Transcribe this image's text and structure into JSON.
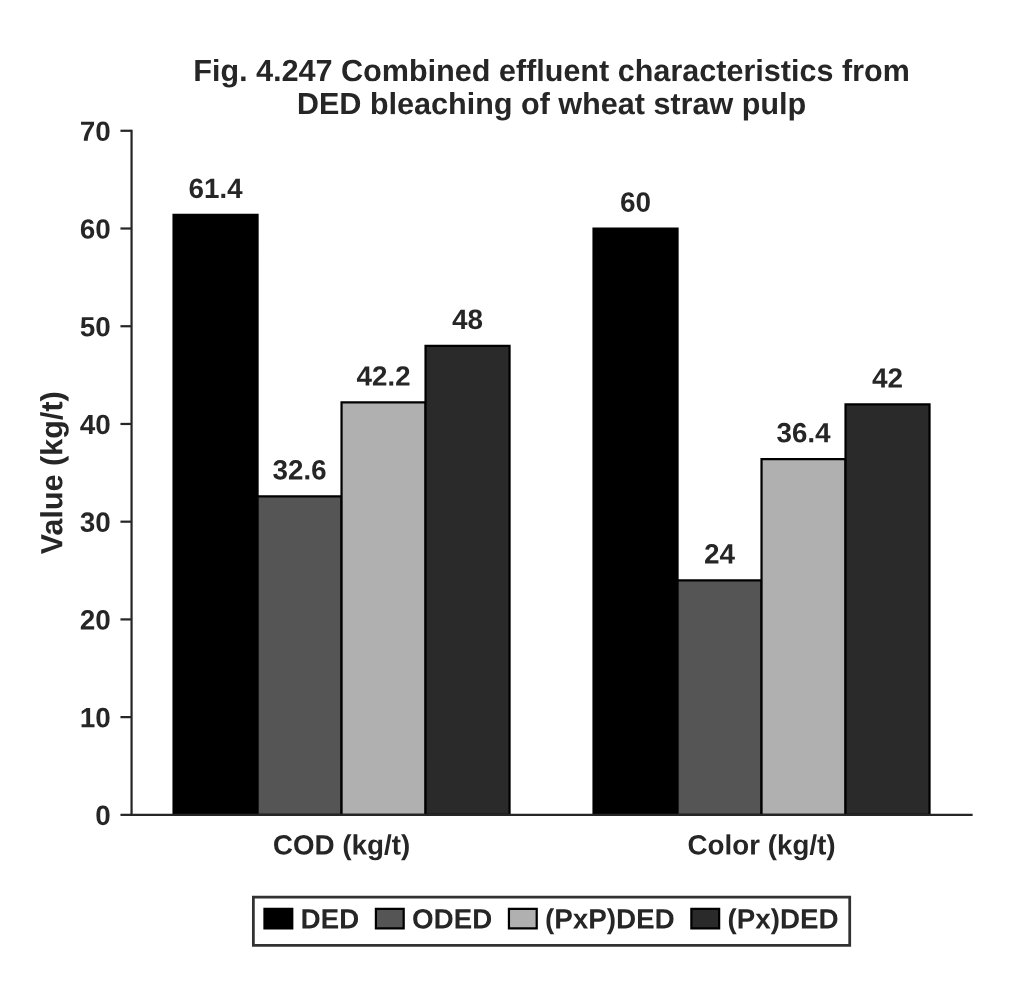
{
  "chart_data": {
    "type": "bar",
    "title": "Fig. 4.247 Combined effluent characteristics from\nDED bleaching of wheat straw pulp",
    "ylabel": "Value (kg/t)",
    "categories": [
      "COD (kg/t)",
      "Color (kg/t)"
    ],
    "series": [
      {
        "name": "DED",
        "color": "#000000",
        "values": [
          61.4,
          60
        ]
      },
      {
        "name": "ODED",
        "color": "#555555",
        "values": [
          32.6,
          24
        ]
      },
      {
        "name": "(PxP)DED",
        "color": "#b0b0b0",
        "values": [
          42.2,
          36.4
        ]
      },
      {
        "name": "(Px)DED",
        "color": "#2a2a2a",
        "values": [
          48,
          42
        ]
      }
    ],
    "ylim": [
      0,
      70
    ],
    "yticks": [
      0,
      10,
      20,
      30,
      40,
      50,
      60,
      70
    ],
    "data_labels": true,
    "grid": false,
    "legend": "bottom"
  }
}
